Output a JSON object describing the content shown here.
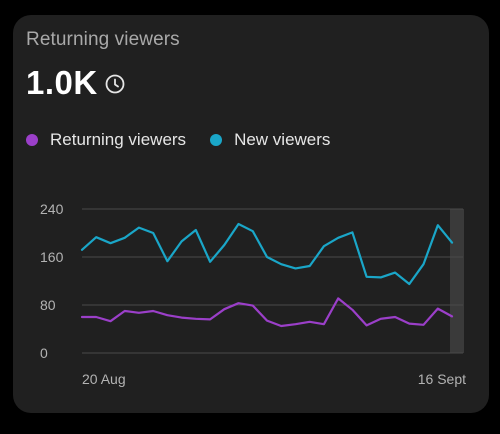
{
  "card": {
    "title": "Returning viewers",
    "value": "1.0K"
  },
  "icons": {
    "value_info": "clock-icon"
  },
  "colors": {
    "card_background": "#202020",
    "returning": "#9b3fc9",
    "new": "#1aa6c8",
    "grid": "#4a4a4a",
    "highlight": "#3a3a3a"
  },
  "legend": [
    {
      "label": "Returning viewers",
      "color": "#9b3fc9"
    },
    {
      "label": "New viewers",
      "color": "#1aa6c8"
    }
  ],
  "chart_data": {
    "type": "line",
    "title": "",
    "xlabel": "",
    "ylabel": "",
    "x_tick_labels": [
      "20 Aug",
      "16 Sept"
    ],
    "y_ticks": [
      "240",
      "160",
      "80",
      "0"
    ],
    "ylim": [
      0,
      240
    ],
    "grid": true,
    "legend_position": "top-left",
    "highlighted_last_point": true,
    "series": [
      {
        "name": "New viewers",
        "color": "#1aa6c8",
        "values": [
          172,
          193,
          183,
          192,
          209,
          200,
          153,
          186,
          205,
          152,
          180,
          215,
          203,
          160,
          148,
          141,
          145,
          178,
          192,
          201,
          127,
          126,
          134,
          115,
          148,
          213,
          184
        ]
      },
      {
        "name": "Returning viewers",
        "color": "#9b3fc9",
        "values": [
          60,
          60,
          53,
          70,
          67,
          70,
          63,
          59,
          57,
          56,
          73,
          83,
          79,
          54,
          45,
          48,
          52,
          48,
          91,
          72,
          46,
          57,
          60,
          49,
          47,
          74,
          61
        ]
      }
    ]
  }
}
